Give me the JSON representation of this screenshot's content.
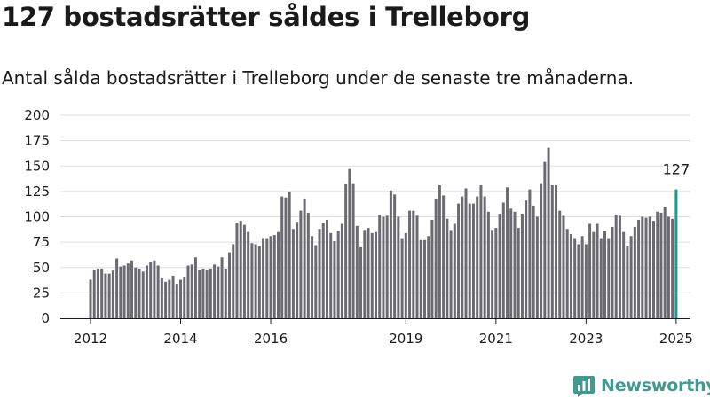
{
  "title": "127 bostadsrätter såldes i Trelleborg",
  "subtitle": "Antal sålda bostadsrätter i Trelleborg under de senaste tre månaderna.",
  "brand": {
    "name": "Newsworthy",
    "logo_icon": "newsworthy-logo-icon"
  },
  "colors": {
    "bar": "#6b6a72",
    "highlight": "#1a9a8a",
    "grid": "#dddddd",
    "axis": "#1a1a1a",
    "brand": "#3f9a90"
  },
  "chart_data": {
    "type": "bar",
    "title": "127 bostadsrätter såldes i Trelleborg",
    "xlabel": "",
    "ylabel": "",
    "ylim": [
      0,
      200
    ],
    "yticks": [
      "0",
      "25",
      "50",
      "75",
      "100",
      "125",
      "150",
      "175",
      "200"
    ],
    "grid": true,
    "x_start": "2012-01",
    "x_tick_labels": [
      {
        "label": "2012",
        "x": "2012-01"
      },
      {
        "label": "2014",
        "x": "2014-01"
      },
      {
        "label": "2016",
        "x": "2016-01"
      },
      {
        "label": "2019",
        "x": "2019-01"
      },
      {
        "label": "2021",
        "x": "2021-01"
      },
      {
        "label": "2023",
        "x": "2023-01"
      },
      {
        "label": "2025",
        "x": "2025-01"
      }
    ],
    "values": [
      38,
      48,
      49,
      49,
      44,
      44,
      47,
      59,
      51,
      52,
      54,
      57,
      50,
      49,
      46,
      52,
      55,
      57,
      52,
      40,
      36,
      38,
      42,
      34,
      38,
      41,
      52,
      53,
      60,
      48,
      49,
      48,
      49,
      53,
      51,
      60,
      49,
      65,
      73,
      94,
      96,
      92,
      85,
      74,
      73,
      71,
      79,
      79,
      81,
      82,
      85,
      120,
      119,
      125,
      88,
      95,
      106,
      118,
      104,
      81,
      72,
      88,
      94,
      97,
      84,
      76,
      86,
      93,
      132,
      147,
      133,
      91,
      70,
      87,
      89,
      84,
      85,
      102,
      100,
      101,
      126,
      122,
      100,
      79,
      84,
      106,
      106,
      101,
      77,
      77,
      81,
      97,
      118,
      131,
      121,
      98,
      87,
      93,
      113,
      120,
      128,
      113,
      113,
      120,
      131,
      120,
      105,
      87,
      89,
      103,
      114,
      129,
      108,
      105,
      89,
      103,
      116,
      127,
      111,
      100,
      133,
      154,
      168,
      131,
      131,
      106,
      101,
      88,
      83,
      79,
      73,
      81,
      73,
      93,
      85,
      93,
      79,
      86,
      79,
      90,
      102,
      101,
      85,
      71,
      81,
      90,
      97,
      100,
      99,
      100,
      96,
      105,
      104,
      110,
      100,
      98,
      127
    ],
    "highlight_last": true,
    "annotations": [
      {
        "text": "127",
        "target": "last"
      }
    ]
  }
}
